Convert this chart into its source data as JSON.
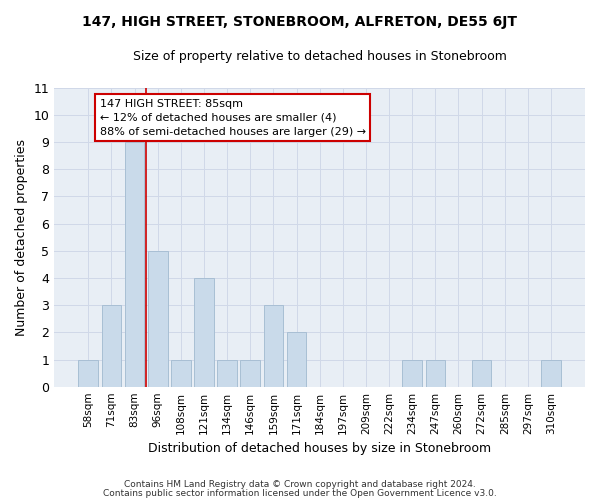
{
  "title": "147, HIGH STREET, STONEBROOM, ALFRETON, DE55 6JT",
  "subtitle": "Size of property relative to detached houses in Stonebroom",
  "xlabel": "Distribution of detached houses by size in Stonebroom",
  "ylabel": "Number of detached properties",
  "categories": [
    "58sqm",
    "71sqm",
    "83sqm",
    "96sqm",
    "108sqm",
    "121sqm",
    "134sqm",
    "146sqm",
    "159sqm",
    "171sqm",
    "184sqm",
    "197sqm",
    "209sqm",
    "222sqm",
    "234sqm",
    "247sqm",
    "260sqm",
    "272sqm",
    "285sqm",
    "297sqm",
    "310sqm"
  ],
  "values": [
    1,
    3,
    9,
    5,
    1,
    4,
    1,
    1,
    3,
    2,
    0,
    0,
    0,
    0,
    1,
    1,
    0,
    1,
    0,
    0,
    1
  ],
  "bar_color": "#c9daea",
  "bar_edge_color": "#a8bfd4",
  "ylim": [
    0,
    11
  ],
  "yticks": [
    0,
    1,
    2,
    3,
    4,
    5,
    6,
    7,
    8,
    9,
    10,
    11
  ],
  "annotation_line1": "147 HIGH STREET: 85sqm",
  "annotation_line2": "← 12% of detached houses are smaller (4)",
  "annotation_line3": "88% of semi-detached houses are larger (29) →",
  "annotation_box_color": "#ffffff",
  "annotation_box_edge_color": "#cc0000",
  "redline_x": 2.5,
  "footer_line1": "Contains HM Land Registry data © Crown copyright and database right 2024.",
  "footer_line2": "Contains public sector information licensed under the Open Government Licence v3.0.",
  "grid_color": "#d0d8e8",
  "bg_color": "#e8eef5",
  "title_fontsize": 10,
  "subtitle_fontsize": 9,
  "annotation_fontsize": 8,
  "ylabel_fontsize": 9,
  "xlabel_fontsize": 9
}
